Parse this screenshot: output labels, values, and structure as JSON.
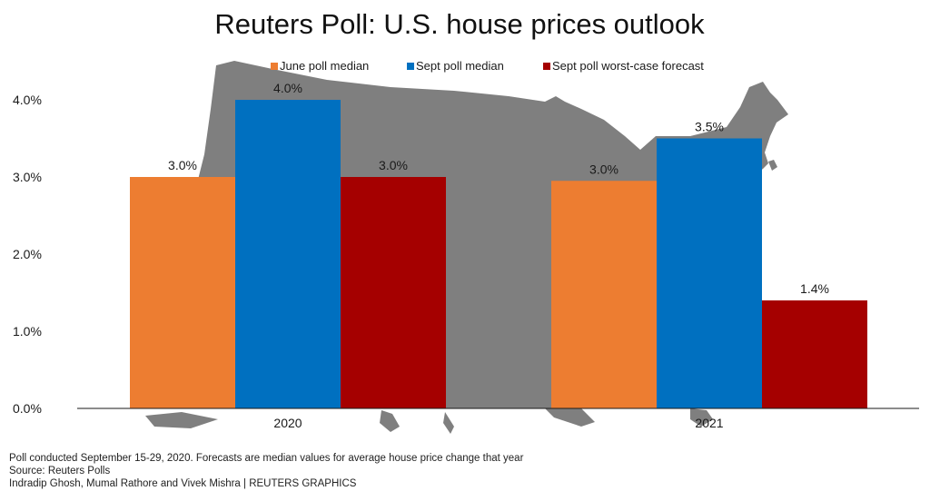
{
  "chart_data": {
    "type": "bar",
    "title": "Reuters Poll: U.S. house prices outlook",
    "categories": [
      "2020",
      "2021"
    ],
    "series": [
      {
        "name": "June poll median",
        "color": "#ed7d31",
        "values": [
          3.0,
          2.95
        ],
        "labels": [
          "3.0%",
          "3.0%"
        ]
      },
      {
        "name": "Sept poll median",
        "color": "#0070c0",
        "values": [
          4.0,
          3.5
        ],
        "labels": [
          "4.0%",
          "3.5%"
        ]
      },
      {
        "name": "Sept poll worst-case forecast",
        "color": "#a50000",
        "values": [
          3.0,
          1.4
        ],
        "labels": [
          "3.0%",
          "1.4%"
        ]
      }
    ],
    "y_ticks": [
      "0.0%",
      "1.0%",
      "2.0%",
      "3.0%",
      "4.0%"
    ],
    "ylim": [
      0,
      4.0
    ],
    "grid": false,
    "legend_position": "top",
    "background": "map of the United States in gray"
  },
  "footer": {
    "note": "Poll conducted September 15-29, 2020. Forecasts are median values for average house price change that year",
    "source": "Source: Reuters Polls",
    "credit": "Indradip Ghosh, Mumal Rathore and Vivek Mishra | REUTERS GRAPHICS"
  }
}
